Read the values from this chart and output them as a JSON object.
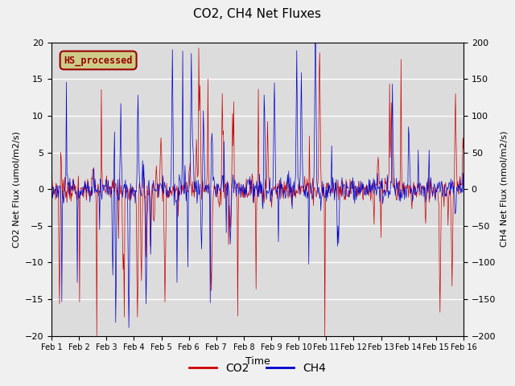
{
  "title": "CO2, CH4 Net Fluxes",
  "xlabel": "Time",
  "ylabel_left": "CO2 Net Flux (umol/m2/s)",
  "ylabel_right": "CH4 Net Flux (nmol/m2/s)",
  "ylim_left": [
    -20,
    20
  ],
  "ylim_right": [
    -200,
    200
  ],
  "yticks_left": [
    -20,
    -15,
    -10,
    -5,
    0,
    5,
    10,
    15,
    20
  ],
  "yticks_right": [
    -200,
    -150,
    -100,
    -50,
    0,
    50,
    100,
    150,
    200
  ],
  "xtick_labels": [
    "Feb 1",
    "Feb 2",
    "Feb 3",
    "Feb 4",
    "Feb 5",
    "Feb 6",
    "Feb 7",
    "Feb 8",
    "Feb 9",
    "Feb 10",
    "Feb 11",
    "Feb 12",
    "Feb 13",
    "Feb 14",
    "Feb 15",
    "Feb 16"
  ],
  "co2_color": "#CC0000",
  "ch4_color": "#0000CC",
  "legend_label_co2": "CO2",
  "legend_label_ch4": "CH4",
  "annotation_text": "HS_processed",
  "annotation_color": "#990000",
  "annotation_bg": "#CCCC88",
  "background_color": "#DCDCDC",
  "fig_bg": "#F0F0F0",
  "grid_color": "#FFFFFF",
  "days": 15
}
